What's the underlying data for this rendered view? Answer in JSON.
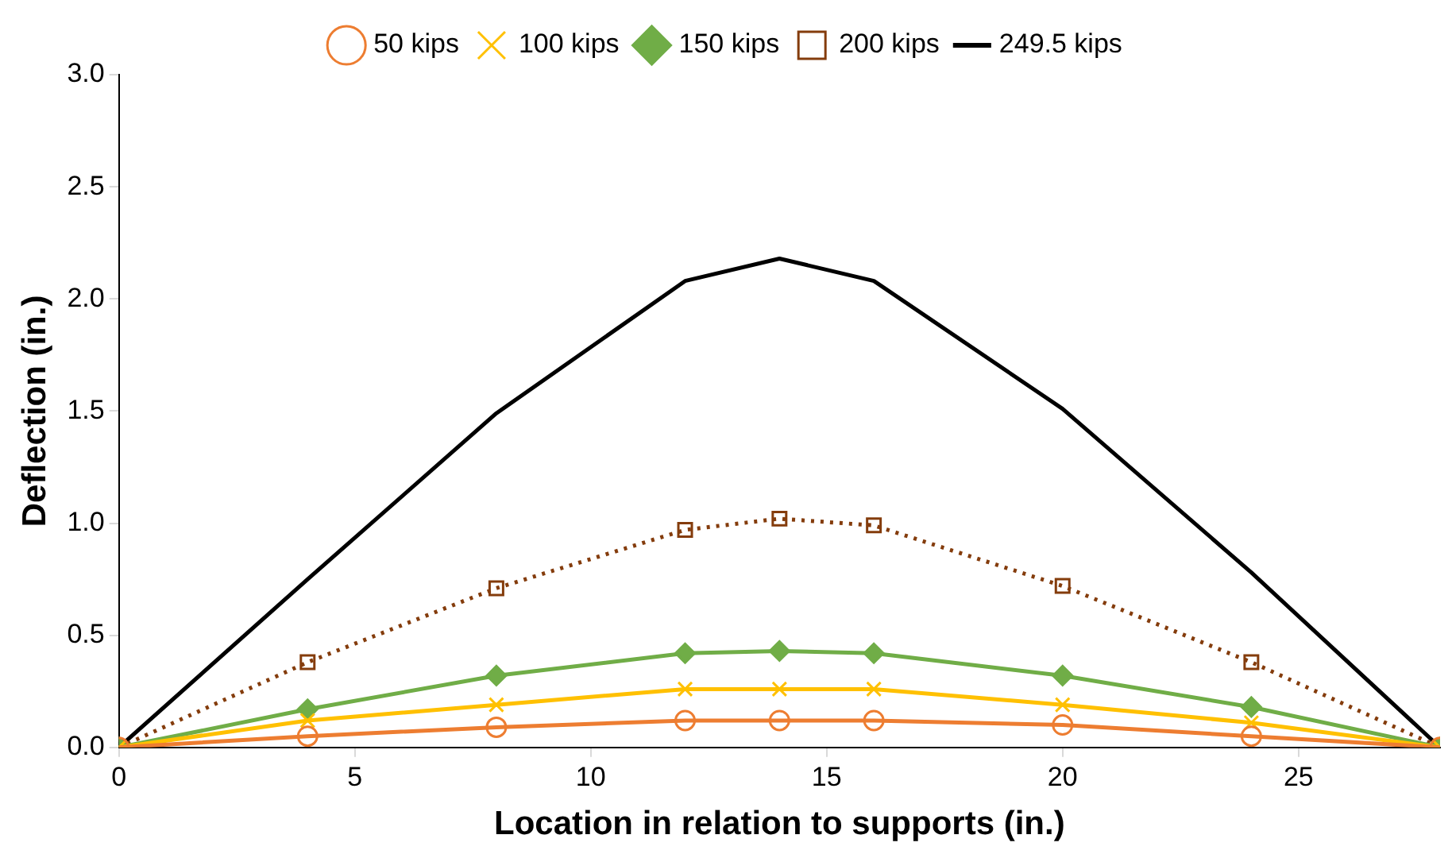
{
  "chart_data": {
    "type": "line",
    "xlabel": "Location in relation to supports (in.)",
    "ylabel": "Deflection (in.)",
    "x": [
      0,
      4,
      8,
      12,
      14,
      16,
      20,
      24,
      28
    ],
    "xlim": [
      0,
      28
    ],
    "xticks": [
      0,
      5,
      10,
      15,
      20,
      25
    ],
    "ylim": [
      0,
      3
    ],
    "yticks": [
      {
        "value": 0,
        "label": "0.0"
      },
      {
        "value": 0.5,
        "label": "0.5"
      },
      {
        "value": 1,
        "label": "1.0"
      },
      {
        "value": 1.5,
        "label": "1.5"
      },
      {
        "value": 2,
        "label": "2.0"
      },
      {
        "value": 2.5,
        "label": "2.5"
      },
      {
        "value": 3,
        "label": "3.0"
      }
    ],
    "grid": false,
    "legend": "top",
    "series": [
      {
        "name": "50 kips",
        "color": "#ed7d31",
        "marker": "circle",
        "line_style": "solid",
        "values": [
          0,
          0.05,
          0.09,
          0.12,
          0.12,
          0.12,
          0.1,
          0.05,
          0
        ]
      },
      {
        "name": "100 kips",
        "color": "#ffc000",
        "marker": "cross",
        "line_style": "solid",
        "values": [
          0,
          0.12,
          0.19,
          0.26,
          0.26,
          0.26,
          0.19,
          0.11,
          0
        ]
      },
      {
        "name": "150 kips",
        "color": "#70ad47",
        "marker": "diamond",
        "line_style": "solid",
        "values": [
          0,
          0.17,
          0.32,
          0.42,
          0.43,
          0.42,
          0.32,
          0.18,
          0
        ]
      },
      {
        "name": "200 kips",
        "color": "#843c0c",
        "marker": "square",
        "line_style": "dotted",
        "values": [
          0,
          0.38,
          0.71,
          0.97,
          1.02,
          0.99,
          0.72,
          0.38,
          0
        ]
      },
      {
        "name": "249.5 kips",
        "color": "#000000",
        "marker": "none",
        "line_style": "solid",
        "values": [
          0,
          0.75,
          1.49,
          2.08,
          2.18,
          2.08,
          1.51,
          0.78,
          0
        ]
      }
    ]
  }
}
